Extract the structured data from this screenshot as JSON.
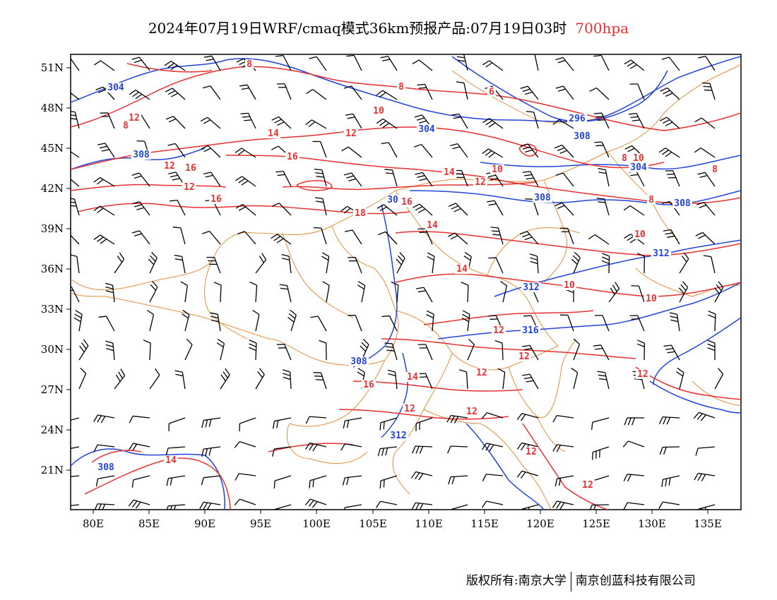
{
  "title": {
    "main": "2024年07月19日WRF/cmaq模式36km预报产品:07月19日03时",
    "level": "700hpa",
    "level_color": "#e83030"
  },
  "axes": {
    "lat_labels": [
      "51N",
      "48N",
      "45N",
      "42N",
      "39N",
      "36N",
      "33N",
      "30N",
      "27N",
      "24N",
      "21N"
    ],
    "lon_labels": [
      "80E",
      "85E",
      "90E",
      "95E",
      "100E",
      "105E",
      "110E",
      "115E",
      "120E",
      "125E",
      "130E",
      "135E"
    ]
  },
  "colors": {
    "height_contour": "#2244dd",
    "temperature_contour": "#e83030",
    "boundary": "#e0903a",
    "wind_barb": "#000000"
  },
  "height_contour_labels": [
    "304",
    "308",
    "304",
    "296",
    "308",
    "304",
    "308",
    "308",
    "312",
    "312",
    "316",
    "308",
    "312",
    "308",
    "30"
  ],
  "temperature_contour_labels": [
    "8",
    "8",
    "8",
    "6",
    "10",
    "12",
    "14",
    "16",
    "12",
    "16",
    "16",
    "18",
    "16",
    "14",
    "12",
    "10",
    "8",
    "8",
    "8",
    "14",
    "14",
    "10",
    "10",
    "10",
    "12",
    "12",
    "12",
    "12",
    "14",
    "16",
    "12",
    "12",
    "12",
    "12",
    "14",
    "12",
    "12",
    "10"
  ],
  "footer": {
    "left": "版权所有:南京大学",
    "right": "南京创蓝科技有限公司"
  }
}
